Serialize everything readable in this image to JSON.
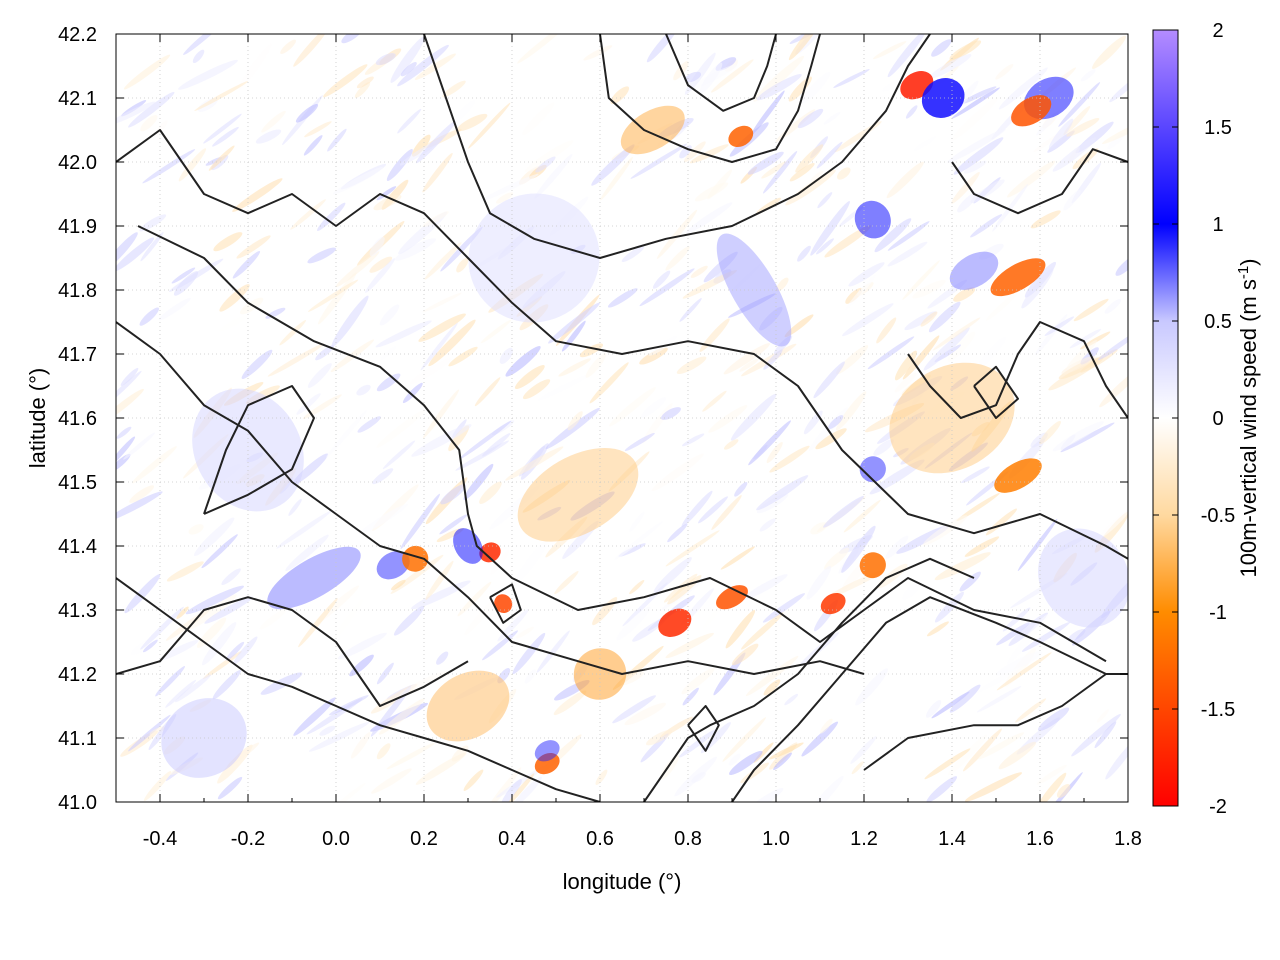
{
  "chart_data": {
    "type": "heatmap",
    "title": "",
    "xlabel": "longitude (°)",
    "ylabel": "latitude (°)",
    "colorbar_label": "100m-vertical wind speed (m s",
    "colorbar_label_sup": "-1",
    "colorbar_label_close": ")",
    "xlim": [
      -0.5,
      1.8
    ],
    "ylim": [
      41.0,
      42.2
    ],
    "clim": [
      -2,
      2
    ],
    "x_ticks": [
      -0.4,
      -0.2,
      0.0,
      0.2,
      0.4,
      0.6,
      0.8,
      1.0,
      1.2,
      1.4,
      1.6,
      1.8
    ],
    "x_tick_labels": [
      "-0.4",
      "-0.2",
      "0.0",
      "0.2",
      "0.4",
      "0.6",
      "0.8",
      "1.0",
      "1.2",
      "1.4",
      "1.6",
      "1.8"
    ],
    "y_ticks": [
      41.0,
      41.1,
      41.2,
      41.3,
      41.4,
      41.5,
      41.6,
      41.7,
      41.8,
      41.9,
      42.0,
      42.1,
      42.2
    ],
    "y_tick_labels": [
      "41.0",
      "41.1",
      "41.2",
      "41.3",
      "41.4",
      "41.5",
      "41.6",
      "41.7",
      "41.8",
      "41.9",
      "42.0",
      "42.1",
      "42.2"
    ],
    "colorbar_ticks": [
      2,
      1.5,
      1,
      0.5,
      0,
      -0.5,
      -1,
      -1.5,
      -2
    ],
    "colorbar_tick_labels": [
      "2",
      "1.5",
      "1",
      "0.5",
      "0",
      "-0.5",
      "-1",
      "-1.5",
      "-2"
    ],
    "colormap": [
      "#ff0000",
      "#ff8c00",
      "#ffd9a0",
      "#ffffff",
      "#c8c8ff",
      "#0000ff",
      "#b48cff"
    ],
    "grid": true,
    "overlay": "terrain contour lines",
    "features": [
      {
        "lon": 1.32,
        "lat": 42.12,
        "value": -1.8,
        "sx": 0.04,
        "sy": 0.02
      },
      {
        "lon": 1.38,
        "lat": 42.1,
        "value": 1.1,
        "sx": 0.05,
        "sy": 0.03
      },
      {
        "lon": 1.62,
        "lat": 42.1,
        "value": 1.0,
        "sx": 0.06,
        "sy": 0.03
      },
      {
        "lon": 1.58,
        "lat": 42.08,
        "value": -1.4,
        "sx": 0.05,
        "sy": 0.02
      },
      {
        "lon": 1.22,
        "lat": 41.91,
        "value": 1.0,
        "sx": 0.04,
        "sy": 0.03
      },
      {
        "lon": 0.92,
        "lat": 42.04,
        "value": -1.3,
        "sx": 0.03,
        "sy": 0.015
      },
      {
        "lon": 0.72,
        "lat": 42.05,
        "value": -0.8,
        "sx": 0.08,
        "sy": 0.03
      },
      {
        "lon": 1.55,
        "lat": 41.82,
        "value": -1.3,
        "sx": 0.07,
        "sy": 0.02
      },
      {
        "lon": 1.45,
        "lat": 41.83,
        "value": 0.7,
        "sx": 0.06,
        "sy": 0.025
      },
      {
        "lon": 0.35,
        "lat": 41.39,
        "value": -1.7,
        "sx": 0.025,
        "sy": 0.015
      },
      {
        "lon": 0.3,
        "lat": 41.4,
        "value": 1.0,
        "sx": 0.03,
        "sy": 0.03
      },
      {
        "lon": 0.13,
        "lat": 41.37,
        "value": 0.9,
        "sx": 0.04,
        "sy": 0.02
      },
      {
        "lon": 0.18,
        "lat": 41.38,
        "value": -1.2,
        "sx": 0.03,
        "sy": 0.02
      },
      {
        "lon": 0.38,
        "lat": 41.31,
        "value": -1.5,
        "sx": 0.02,
        "sy": 0.015
      },
      {
        "lon": 0.77,
        "lat": 41.28,
        "value": -1.7,
        "sx": 0.04,
        "sy": 0.02
      },
      {
        "lon": 0.9,
        "lat": 41.32,
        "value": -1.4,
        "sx": 0.04,
        "sy": 0.015
      },
      {
        "lon": 1.13,
        "lat": 41.31,
        "value": -1.6,
        "sx": 0.03,
        "sy": 0.015
      },
      {
        "lon": 1.22,
        "lat": 41.37,
        "value": -1.2,
        "sx": 0.03,
        "sy": 0.02
      },
      {
        "lon": 1.22,
        "lat": 41.52,
        "value": 0.9,
        "sx": 0.03,
        "sy": 0.02
      },
      {
        "lon": 1.55,
        "lat": 41.51,
        "value": -1.1,
        "sx": 0.06,
        "sy": 0.02
      },
      {
        "lon": 0.48,
        "lat": 41.06,
        "value": -1.3,
        "sx": 0.03,
        "sy": 0.015
      },
      {
        "lon": 0.48,
        "lat": 41.08,
        "value": 0.9,
        "sx": 0.03,
        "sy": 0.015
      },
      {
        "lon": 0.6,
        "lat": 41.2,
        "value": -0.9,
        "sx": 0.06,
        "sy": 0.04
      },
      {
        "lon": -0.05,
        "lat": 41.35,
        "value": 0.7,
        "sx": 0.12,
        "sy": 0.03
      },
      {
        "lon": 0.55,
        "lat": 41.48,
        "value": -0.6,
        "sx": 0.15,
        "sy": 0.06
      },
      {
        "lon": 1.4,
        "lat": 41.6,
        "value": -0.6,
        "sx": 0.15,
        "sy": 0.08
      },
      {
        "lon": 0.95,
        "lat": 41.8,
        "value": 0.6,
        "sx": 0.05,
        "sy": 0.1
      },
      {
        "lon": 1.7,
        "lat": 41.35,
        "value": 0.4,
        "sx": 0.1,
        "sy": 0.08
      },
      {
        "lon": -0.3,
        "lat": 41.1,
        "value": 0.5,
        "sx": 0.1,
        "sy": 0.06
      },
      {
        "lon": 0.3,
        "lat": 41.15,
        "value": -0.7,
        "sx": 0.1,
        "sy": 0.05
      },
      {
        "lon": -0.2,
        "lat": 41.55,
        "value": 0.4,
        "sx": 0.12,
        "sy": 0.1
      },
      {
        "lon": 0.45,
        "lat": 41.85,
        "value": 0.3,
        "sx": 0.15,
        "sy": 0.1
      }
    ],
    "contours": [
      [
        [
          -0.5,
          42.0
        ],
        [
          -0.4,
          42.05
        ],
        [
          -0.3,
          41.95
        ],
        [
          -0.2,
          41.92
        ],
        [
          -0.1,
          41.95
        ],
        [
          0.0,
          41.9
        ],
        [
          0.1,
          41.95
        ],
        [
          0.2,
          41.92
        ],
        [
          0.3,
          41.85
        ],
        [
          0.4,
          41.78
        ],
        [
          0.5,
          41.72
        ],
        [
          0.65,
          41.7
        ],
        [
          0.8,
          41.72
        ],
        [
          0.95,
          41.7
        ],
        [
          1.05,
          41.65
        ],
        [
          1.15,
          41.55
        ],
        [
          1.3,
          41.45
        ],
        [
          1.45,
          41.42
        ],
        [
          1.6,
          41.45
        ],
        [
          1.75,
          41.4
        ],
        [
          1.8,
          41.38
        ]
      ],
      [
        [
          -0.45,
          41.9
        ],
        [
          -0.3,
          41.85
        ],
        [
          -0.2,
          41.78
        ],
        [
          -0.05,
          41.72
        ],
        [
          0.1,
          41.68
        ],
        [
          0.2,
          41.62
        ],
        [
          0.28,
          41.55
        ],
        [
          0.3,
          41.45
        ],
        [
          0.32,
          41.4
        ],
        [
          0.4,
          41.35
        ],
        [
          0.55,
          41.3
        ],
        [
          0.7,
          41.32
        ],
        [
          0.85,
          41.35
        ],
        [
          1.0,
          41.3
        ],
        [
          1.1,
          41.25
        ],
        [
          1.2,
          41.3
        ],
        [
          1.3,
          41.35
        ],
        [
          1.45,
          41.3
        ],
        [
          1.6,
          41.28
        ],
        [
          1.75,
          41.22
        ]
      ],
      [
        [
          -0.5,
          41.75
        ],
        [
          -0.4,
          41.7
        ],
        [
          -0.3,
          41.62
        ],
        [
          -0.2,
          41.58
        ],
        [
          -0.1,
          41.5
        ],
        [
          0.0,
          41.45
        ],
        [
          0.1,
          41.4
        ],
        [
          0.2,
          41.38
        ],
        [
          0.3,
          41.32
        ],
        [
          0.4,
          41.25
        ],
        [
          0.55,
          41.22
        ],
        [
          0.65,
          41.2
        ],
        [
          0.8,
          41.22
        ],
        [
          0.95,
          41.2
        ],
        [
          1.1,
          41.22
        ],
        [
          1.2,
          41.2
        ]
      ],
      [
        [
          -0.5,
          41.35
        ],
        [
          -0.4,
          41.3
        ],
        [
          -0.3,
          41.25
        ],
        [
          -0.2,
          41.2
        ],
        [
          -0.1,
          41.18
        ],
        [
          0.0,
          41.15
        ],
        [
          0.1,
          41.12
        ],
        [
          0.2,
          41.1
        ],
        [
          0.3,
          41.08
        ],
        [
          0.4,
          41.05
        ],
        [
          0.5,
          41.02
        ],
        [
          0.6,
          41.0
        ]
      ],
      [
        [
          0.7,
          41.0
        ],
        [
          0.75,
          41.05
        ],
        [
          0.8,
          41.1
        ],
        [
          0.85,
          41.12
        ],
        [
          0.95,
          41.15
        ],
        [
          1.05,
          41.2
        ],
        [
          1.15,
          41.28
        ],
        [
          1.25,
          41.35
        ],
        [
          1.35,
          41.38
        ],
        [
          1.45,
          41.35
        ]
      ],
      [
        [
          0.9,
          41.0
        ],
        [
          0.95,
          41.05
        ],
        [
          1.05,
          41.12
        ],
        [
          1.15,
          41.2
        ],
        [
          1.25,
          41.28
        ],
        [
          1.35,
          41.32
        ],
        [
          1.5,
          41.28
        ],
        [
          1.6,
          41.25
        ],
        [
          1.75,
          41.2
        ],
        [
          1.8,
          41.2
        ]
      ],
      [
        [
          1.2,
          41.05
        ],
        [
          1.3,
          41.1
        ],
        [
          1.45,
          41.12
        ],
        [
          1.55,
          41.12
        ],
        [
          1.65,
          41.15
        ],
        [
          1.75,
          41.2
        ]
      ],
      [
        [
          0.2,
          42.2
        ],
        [
          0.25,
          42.1
        ],
        [
          0.3,
          42.0
        ],
        [
          0.35,
          41.92
        ],
        [
          0.45,
          41.88
        ],
        [
          0.6,
          41.85
        ],
        [
          0.75,
          41.88
        ],
        [
          0.9,
          41.9
        ],
        [
          1.05,
          41.95
        ],
        [
          1.15,
          42.0
        ],
        [
          1.25,
          42.08
        ],
        [
          1.3,
          42.15
        ],
        [
          1.35,
          42.2
        ]
      ],
      [
        [
          0.6,
          42.2
        ],
        [
          0.62,
          42.1
        ],
        [
          0.7,
          42.05
        ],
        [
          0.8,
          42.02
        ],
        [
          0.9,
          42.0
        ],
        [
          1.0,
          42.02
        ],
        [
          1.05,
          42.08
        ],
        [
          1.08,
          42.15
        ],
        [
          1.1,
          42.2
        ]
      ],
      [
        [
          0.75,
          42.2
        ],
        [
          0.8,
          42.12
        ],
        [
          0.88,
          42.08
        ],
        [
          0.95,
          42.1
        ],
        [
          0.98,
          42.15
        ],
        [
          1.0,
          42.2
        ]
      ],
      [
        [
          -0.5,
          41.2
        ],
        [
          -0.4,
          41.22
        ],
        [
          -0.3,
          41.3
        ],
        [
          -0.2,
          41.32
        ],
        [
          -0.1,
          41.3
        ],
        [
          0.0,
          41.25
        ],
        [
          0.05,
          41.2
        ],
        [
          0.1,
          41.15
        ],
        [
          0.2,
          41.18
        ],
        [
          0.3,
          41.22
        ]
      ],
      [
        [
          1.3,
          41.7
        ],
        [
          1.35,
          41.65
        ],
        [
          1.42,
          41.6
        ],
        [
          1.5,
          41.62
        ],
        [
          1.55,
          41.7
        ],
        [
          1.6,
          41.75
        ],
        [
          1.7,
          41.72
        ],
        [
          1.75,
          41.65
        ],
        [
          1.8,
          41.6
        ]
      ],
      [
        [
          1.4,
          42.0
        ],
        [
          1.45,
          41.95
        ],
        [
          1.55,
          41.92
        ],
        [
          1.65,
          41.95
        ],
        [
          1.72,
          42.02
        ],
        [
          1.8,
          42.0
        ]
      ],
      [
        [
          -0.3,
          41.45
        ],
        [
          -0.25,
          41.55
        ],
        [
          -0.2,
          41.62
        ],
        [
          -0.1,
          41.65
        ],
        [
          -0.05,
          41.6
        ],
        [
          -0.1,
          41.52
        ],
        [
          -0.2,
          41.48
        ],
        [
          -0.3,
          41.45
        ]
      ],
      [
        [
          0.35,
          41.32
        ],
        [
          0.38,
          41.28
        ],
        [
          0.42,
          41.3
        ],
        [
          0.4,
          41.34
        ],
        [
          0.35,
          41.32
        ]
      ],
      [
        [
          0.8,
          41.12
        ],
        [
          0.84,
          41.08
        ],
        [
          0.87,
          41.12
        ],
        [
          0.84,
          41.15
        ],
        [
          0.8,
          41.12
        ]
      ],
      [
        [
          1.45,
          41.65
        ],
        [
          1.5,
          41.6
        ],
        [
          1.55,
          41.63
        ],
        [
          1.5,
          41.68
        ],
        [
          1.45,
          41.65
        ]
      ]
    ]
  }
}
